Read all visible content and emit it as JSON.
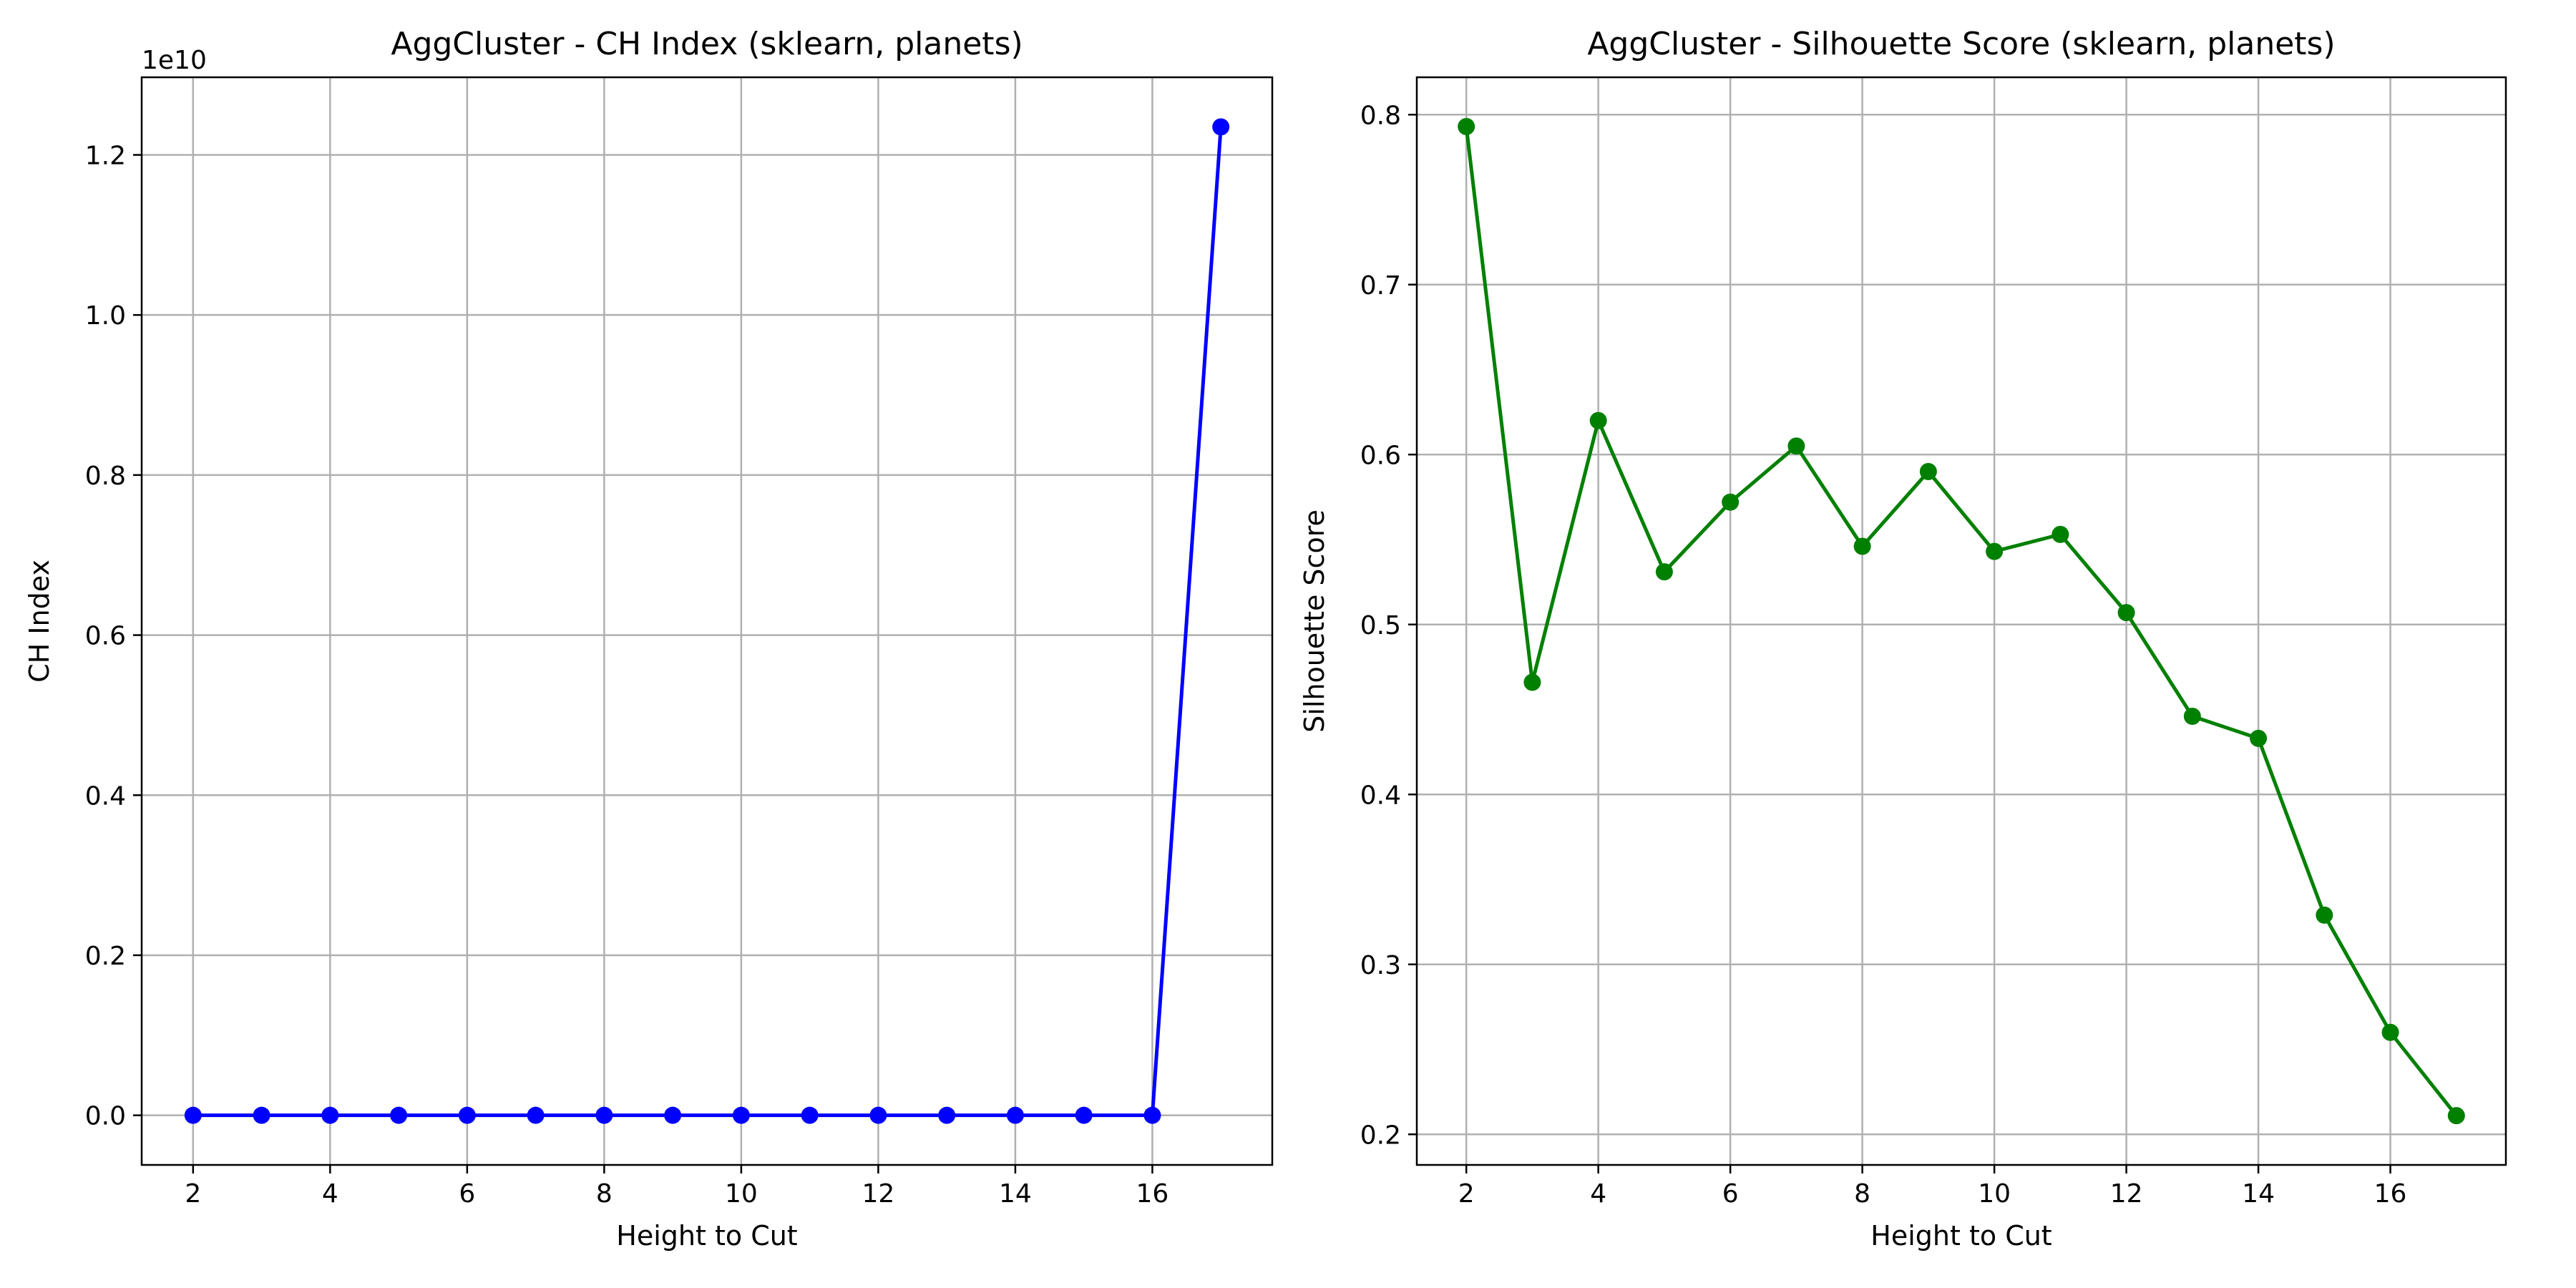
{
  "chart_data": [
    {
      "type": "line",
      "title": "AggCluster - CH Index (sklearn, planets)",
      "xlabel": "Height to Cut",
      "ylabel": "CH Index",
      "y_offset_label": "1e10",
      "x": [
        2,
        3,
        4,
        5,
        6,
        7,
        8,
        9,
        10,
        11,
        12,
        13,
        14,
        15,
        16,
        17
      ],
      "series": [
        {
          "values": [
            0,
            0,
            0,
            0,
            0,
            0,
            0,
            0,
            0,
            0,
            0,
            0,
            0,
            0,
            0,
            12350000000
          ],
          "color": "#0000ff"
        }
      ],
      "xlim": [
        1.25,
        17.75
      ],
      "ylim": [
        -620000000,
        12970000000
      ],
      "x_ticks": [
        2,
        4,
        6,
        8,
        10,
        12,
        14,
        16
      ],
      "x_tick_labels": [
        "2",
        "4",
        "6",
        "8",
        "10",
        "12",
        "14",
        "16"
      ],
      "y_ticks": [
        0,
        2000000000,
        4000000000,
        6000000000,
        8000000000,
        10000000000,
        12000000000
      ],
      "y_tick_labels": [
        "0.0",
        "0.2",
        "0.4",
        "0.6",
        "0.8",
        "1.0",
        "1.2"
      ],
      "grid": true,
      "marker": "circle"
    },
    {
      "type": "line",
      "title": "AggCluster - Silhouette Score (sklearn, planets)",
      "xlabel": "Height to Cut",
      "ylabel": "Silhouette Score",
      "x": [
        2,
        3,
        4,
        5,
        6,
        7,
        8,
        9,
        10,
        11,
        12,
        13,
        14,
        15,
        16,
        17
      ],
      "series": [
        {
          "values": [
            0.793,
            0.466,
            0.62,
            0.531,
            0.572,
            0.605,
            0.546,
            0.59,
            0.543,
            0.553,
            0.507,
            0.446,
            0.433,
            0.329,
            0.26,
            0.211
          ],
          "color": "#008000"
        }
      ],
      "xlim": [
        1.25,
        17.75
      ],
      "ylim": [
        0.182,
        0.822
      ],
      "x_ticks": [
        2,
        4,
        6,
        8,
        10,
        12,
        14,
        16
      ],
      "x_tick_labels": [
        "2",
        "4",
        "6",
        "8",
        "10",
        "12",
        "14",
        "16"
      ],
      "y_ticks": [
        0.2,
        0.3,
        0.4,
        0.5,
        0.6,
        0.7,
        0.8
      ],
      "y_tick_labels": [
        "0.2",
        "0.3",
        "0.4",
        "0.5",
        "0.6",
        "0.7",
        "0.8"
      ],
      "grid": true,
      "marker": "circle"
    }
  ]
}
